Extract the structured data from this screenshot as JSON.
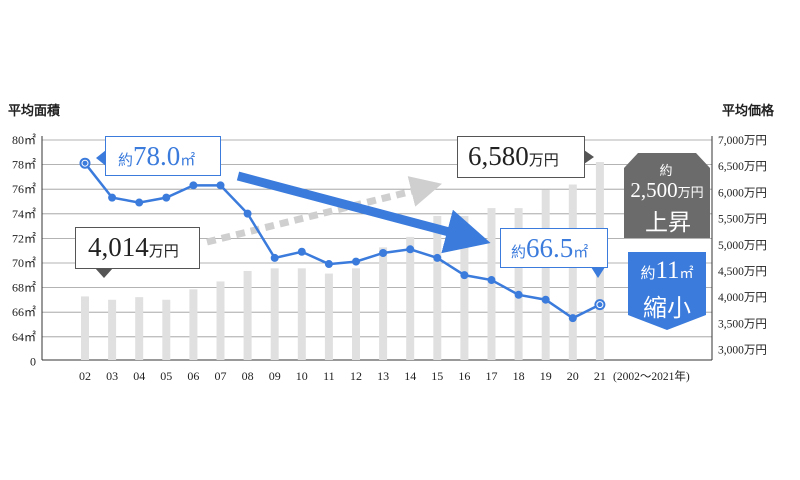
{
  "chart_data": {
    "type": "bar+line",
    "categories": [
      "02",
      "03",
      "04",
      "05",
      "06",
      "07",
      "08",
      "09",
      "10",
      "11",
      "12",
      "13",
      "14",
      "15",
      "16",
      "17",
      "18",
      "19",
      "20",
      "21"
    ],
    "x_suffix_label": "(2002〜2021年)",
    "left_axis": {
      "title": "平均面積",
      "ticks": [
        "80㎡",
        "78㎡",
        "76㎡",
        "74㎡",
        "72㎡",
        "70㎡",
        "68㎡",
        "66㎡",
        "64㎡",
        "0"
      ],
      "tick_values": [
        80,
        78,
        76,
        74,
        72,
        70,
        68,
        66,
        64,
        62
      ],
      "range": [
        62,
        80
      ]
    },
    "right_axis": {
      "title": "平均価格",
      "ticks": [
        "7,000万円",
        "6,500万円",
        "6,000万円",
        "5,500万円",
        "5,000万円",
        "4,500万円",
        "4,000万円",
        "3,500万円",
        "3,000万円"
      ],
      "tick_values": [
        7000,
        6500,
        6000,
        5500,
        5000,
        4500,
        4000,
        3500,
        3000
      ],
      "range": [
        2800,
        7000
      ]
    },
    "series": [
      {
        "type": "line",
        "axis": "left",
        "color": "#3b7bdc",
        "values": [
          78.0,
          75.2,
          74.8,
          75.2,
          76.2,
          76.2,
          73.9,
          70.3,
          70.8,
          69.8,
          70.0,
          70.7,
          71.0,
          70.3,
          68.9,
          68.5,
          67.3,
          66.9,
          65.4,
          66.5
        ]
      },
      {
        "type": "bar",
        "axis": "right",
        "color": "#e0e0e0",
        "values": [
          4014,
          3950,
          4000,
          3950,
          4150,
          4300,
          4500,
          4550,
          4550,
          4450,
          4550,
          4950,
          5150,
          5550,
          5550,
          5700,
          5700,
          6050,
          6150,
          6580
        ]
      }
    ],
    "annotations": {
      "area_2002": {
        "prefix": "約",
        "value": "78.0",
        "unit": "㎡"
      },
      "area_2021": {
        "prefix": "約",
        "value": "66.5",
        "unit": "㎡"
      },
      "price_2002": {
        "value": "4,014",
        "unit": "万円"
      },
      "price_2021": {
        "value": "6,580",
        "unit": "万円"
      },
      "price_badge": {
        "line1": "約",
        "line2_value": "2,500",
        "line2_unit": "万円",
        "line3": "上昇",
        "color": "#6b6b6b"
      },
      "area_badge": {
        "prefix": "約",
        "value": "11",
        "unit": "㎡",
        "line2": "縮小",
        "color": "#3b7bdc"
      }
    }
  }
}
